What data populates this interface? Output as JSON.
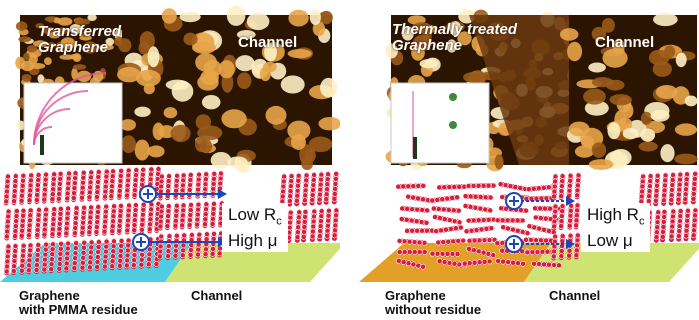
{
  "colors": {
    "afm_background": "#2b1500",
    "afm_grain": "#e8a449",
    "pentacene": "#d81e3c",
    "substrate_residue": "#4fcde0",
    "substrate_clean": "#e2a126",
    "substrate_channel": "#cfe373",
    "carrier": "#1d46b8"
  },
  "left": {
    "afm_label": "Transferred\nGraphene",
    "afm_channel_label": "Channel",
    "resistance_label": "Low R",
    "resistance_sub": "c",
    "mobility_label": "High μ",
    "caption_left": "Graphene\nwith PMMA residue",
    "caption_right": "Channel"
  },
  "right": {
    "afm_label": "Thermally treated\nGraphene",
    "afm_channel_label": "Channel",
    "resistance_label": "High R",
    "resistance_sub": "c",
    "mobility_label": "Low  μ",
    "caption_left": "Graphene\nwithout residue",
    "caption_right": "Channel"
  },
  "icons": {
    "carrier": "hole-carrier-plus-icon",
    "arrow": "transport-arrow-icon",
    "diffraction": "diffraction-pattern-icon"
  }
}
